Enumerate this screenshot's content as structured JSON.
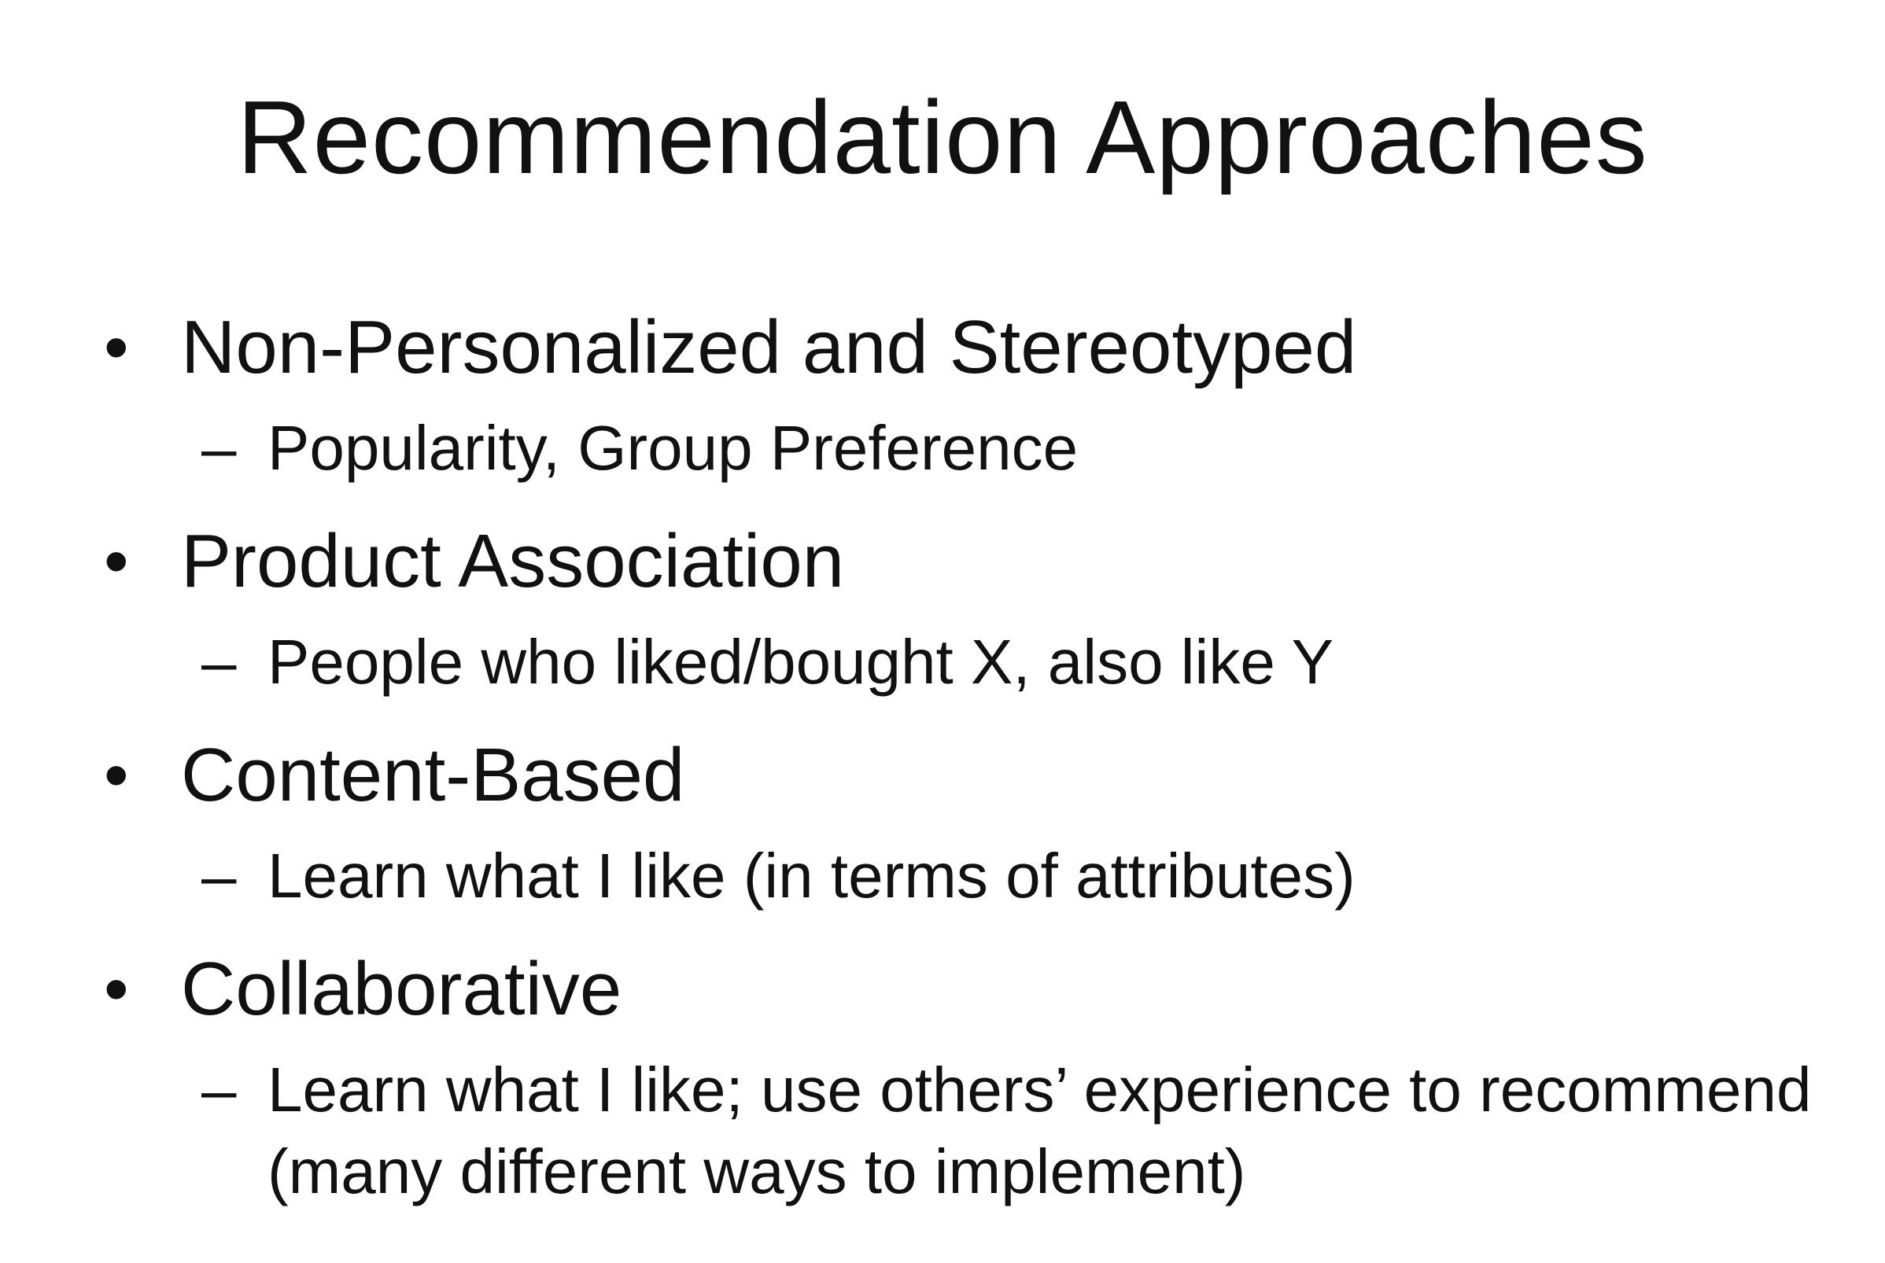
{
  "slide": {
    "title": "Recommendation Approaches",
    "bullet_glyph": "•",
    "dash_glyph": "–",
    "items": [
      {
        "label": "Non-Personalized and Stereotyped",
        "sub": "Popularity, Group Preference"
      },
      {
        "label": "Product Association",
        "sub": "People who liked/bought X, also like Y"
      },
      {
        "label": "Content-Based",
        "sub": "Learn what I like (in terms of attributes)"
      },
      {
        "label": "Collaborative",
        "sub": "Learn what I like; use others’ experience to recommend (many different ways to implement)"
      }
    ]
  }
}
